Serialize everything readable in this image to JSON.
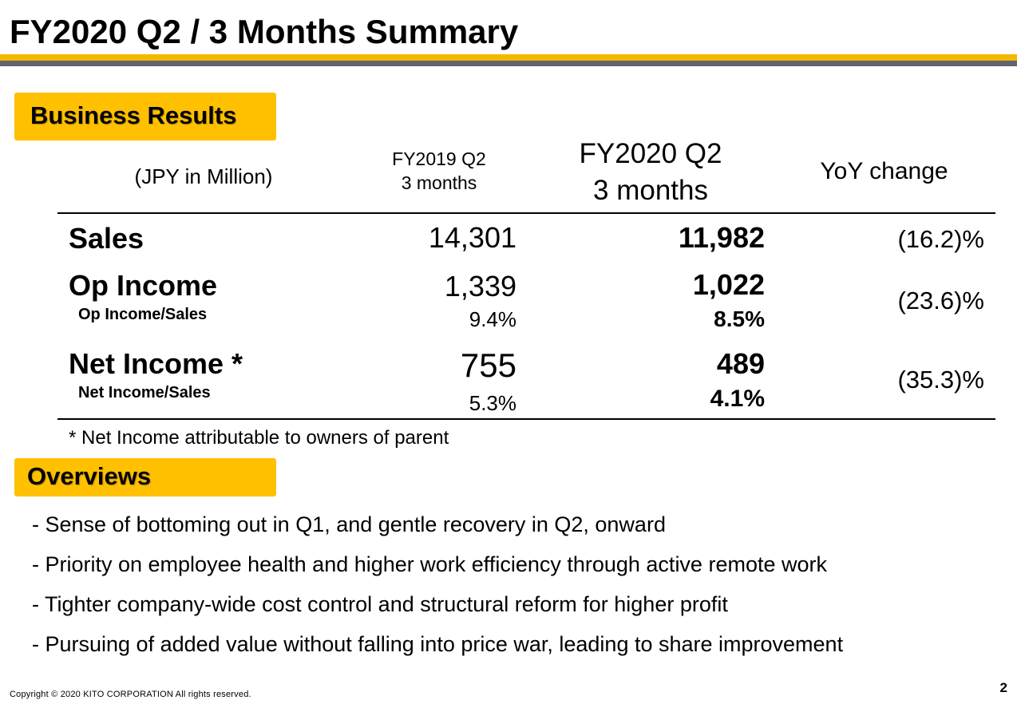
{
  "header": {
    "title": "FY2020 Q2 / 3 Months Summary"
  },
  "business_results": {
    "tag": "Business Results",
    "unit_label": "(JPY in Million)",
    "col_prev": {
      "line1": "FY2019 Q2",
      "line2": "3 months"
    },
    "col_curr": {
      "line1": "FY2020 Q2",
      "line2": "3 months"
    },
    "col_yoy": "YoY change",
    "rows": [
      {
        "label": "Sales",
        "prev": "14,301",
        "curr": "11,982",
        "yoy": "(16.2)%"
      },
      {
        "label": "Op Income",
        "sub_label": "Op Income/Sales",
        "prev": "1,339",
        "prev_sub": "9.4%",
        "curr": "1,022",
        "curr_sub": "8.5%",
        "yoy": "(23.6)%"
      },
      {
        "label": "Net Income *",
        "sub_label": "Net Income/Sales",
        "prev": "755",
        "prev_sub": "5.3%",
        "curr": "489",
        "curr_sub": "4.1%",
        "yoy": "(35.3)%"
      }
    ],
    "footnote": "* Net Income attributable to owners of parent"
  },
  "overviews": {
    "tag": "Overviews",
    "bullets": [
      "- Sense of bottoming out in Q1, and gentle recovery in Q2, onward",
      "- Priority on employee health and higher work efficiency through active remote work",
      "- Tighter company-wide cost control and structural reform for higher profit",
      "- Pursuing of added value without falling into price war, leading to share improvement"
    ]
  },
  "footer": {
    "copyright": "Copyright © 2020  KITO CORPORATION  All rights reserved.",
    "page_number": "2"
  },
  "colors": {
    "accent_yellow": "#ffc000",
    "bar_yellow": "#f5b800",
    "bar_gray": "#5f6470"
  }
}
